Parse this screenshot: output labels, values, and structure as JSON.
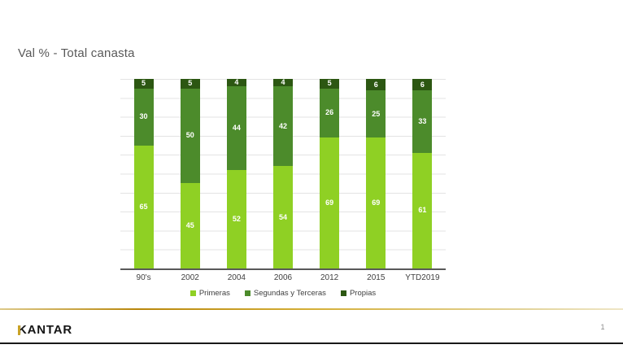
{
  "slide": {
    "title": "Val % - Total canasta",
    "page_number": "1",
    "footer": {
      "logo_text": "KANTAR"
    }
  },
  "colors": {
    "title_text": "#595959",
    "gold_accent": "#c9a227",
    "axis_line": "#595959",
    "gridline": "#e3e3e3",
    "value_label_text": "#ffffff"
  },
  "chart_data": {
    "type": "bar",
    "stacked": true,
    "title": "Val % - Total canasta",
    "xlabel": "",
    "ylabel": "",
    "ylim": [
      0,
      100
    ],
    "grid": true,
    "gridline_step": 10,
    "legend_position": "bottom",
    "value_labels": true,
    "categories": [
      "90's",
      "2002",
      "2004",
      "2006",
      "2012",
      "2015",
      "YTD2019"
    ],
    "series": [
      {
        "name": "Primeras",
        "color": "#8fd024",
        "values": [
          65,
          45,
          52,
          54,
          69,
          69,
          61
        ]
      },
      {
        "name": "Segundas y Terceras",
        "color": "#4c8b2b",
        "values": [
          30,
          50,
          44,
          42,
          26,
          25,
          33
        ]
      },
      {
        "name": "Propias",
        "color": "#2c5712",
        "values": [
          5,
          5,
          4,
          4,
          5,
          6,
          6
        ]
      }
    ]
  }
}
